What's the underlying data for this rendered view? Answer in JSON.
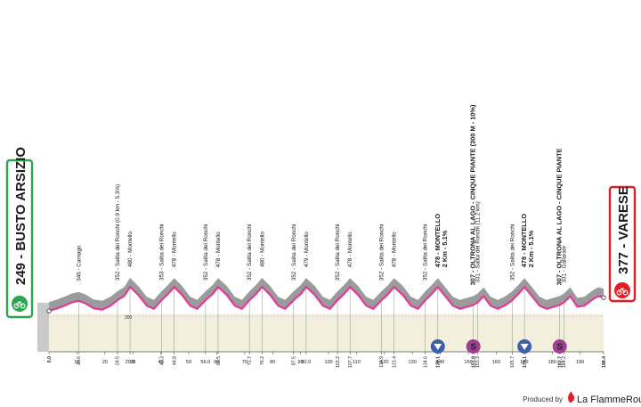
{
  "chart_data": {
    "type": "area",
    "x_unit": "km",
    "total_km": 198.4,
    "y_range": [
      0,
      500
    ],
    "gridline_label": "200",
    "start": {
      "label": "249 - BUSTO ARSIZIO",
      "alt": 249
    },
    "finish": {
      "label": "377 - VARESE",
      "alt": 377
    },
    "x_ticks": [
      {
        "km": 0,
        "label": "0.0",
        "bold": true
      },
      {
        "km": 10,
        "label": "10"
      },
      {
        "km": 10.6,
        "label": "10.6"
      },
      {
        "km": 20,
        "label": "20"
      },
      {
        "km": 24.5,
        "label": "24.5"
      },
      {
        "km": 29.0,
        "label": "29.0"
      },
      {
        "km": 30,
        "label": "30"
      },
      {
        "km": 40,
        "label": "40"
      },
      {
        "km": 40.3,
        "label": "40.3"
      },
      {
        "km": 44.8,
        "label": "44.8"
      },
      {
        "km": 50,
        "label": "50"
      },
      {
        "km": 56.0,
        "label": "56.0"
      },
      {
        "km": 60,
        "label": "60"
      },
      {
        "km": 60.5,
        "label": "60.5"
      },
      {
        "km": 70,
        "label": "70"
      },
      {
        "km": 71.7,
        "label": "71.7"
      },
      {
        "km": 76.2,
        "label": "76.2"
      },
      {
        "km": 80,
        "label": "80"
      },
      {
        "km": 87.5,
        "label": "87.5"
      },
      {
        "km": 90,
        "label": "90"
      },
      {
        "km": 92.0,
        "label": "92.0"
      },
      {
        "km": 100,
        "label": "100"
      },
      {
        "km": 103.2,
        "label": "103.2"
      },
      {
        "km": 107.7,
        "label": "107.7"
      },
      {
        "km": 110,
        "label": "110"
      },
      {
        "km": 118.9,
        "label": "118.9"
      },
      {
        "km": 120,
        "label": "120"
      },
      {
        "km": 123.4,
        "label": "123.4"
      },
      {
        "km": 130,
        "label": "130"
      },
      {
        "km": 134.6,
        "label": "134.6"
      },
      {
        "km": 139.1,
        "label": "139.1",
        "bold": true
      },
      {
        "km": 140,
        "label": "140"
      },
      {
        "km": 150,
        "label": "150"
      },
      {
        "km": 151.8,
        "label": "151.8",
        "bold": true
      },
      {
        "km": 153.3,
        "label": "153.3"
      },
      {
        "km": 160,
        "label": "160"
      },
      {
        "km": 165.7,
        "label": "165.7"
      },
      {
        "km": 170,
        "label": "170"
      },
      {
        "km": 170.1,
        "label": "170.1",
        "bold": true
      },
      {
        "km": 180,
        "label": "180"
      },
      {
        "km": 182.7,
        "label": "182.7",
        "bold": true
      },
      {
        "km": 184.2,
        "label": "184.2"
      },
      {
        "km": 190,
        "label": "190"
      },
      {
        "km": 198.4,
        "label": "198.4",
        "bold": true
      }
    ],
    "profile": [
      {
        "km": 0,
        "alt": 249
      },
      {
        "km": 3,
        "alt": 275
      },
      {
        "km": 6,
        "alt": 305
      },
      {
        "km": 8,
        "alt": 330
      },
      {
        "km": 10.6,
        "alt": 346
      },
      {
        "km": 13,
        "alt": 322
      },
      {
        "km": 16,
        "alt": 275
      },
      {
        "km": 19,
        "alt": 262
      },
      {
        "km": 22,
        "alt": 300
      },
      {
        "km": 24.5,
        "alt": 352
      },
      {
        "km": 27,
        "alt": 395
      },
      {
        "km": 29.0,
        "alt": 480
      },
      {
        "km": 32,
        "alt": 400
      },
      {
        "km": 35,
        "alt": 300
      },
      {
        "km": 37.5,
        "alt": 270
      },
      {
        "km": 40.3,
        "alt": 353
      },
      {
        "km": 42.5,
        "alt": 410
      },
      {
        "km": 44.8,
        "alt": 478
      },
      {
        "km": 47.5,
        "alt": 405
      },
      {
        "km": 50.5,
        "alt": 300
      },
      {
        "km": 53,
        "alt": 270
      },
      {
        "km": 56.0,
        "alt": 352
      },
      {
        "km": 58.5,
        "alt": 410
      },
      {
        "km": 60.5,
        "alt": 478
      },
      {
        "km": 63.5,
        "alt": 405
      },
      {
        "km": 66.5,
        "alt": 300
      },
      {
        "km": 69,
        "alt": 270
      },
      {
        "km": 71.7,
        "alt": 352
      },
      {
        "km": 74,
        "alt": 410
      },
      {
        "km": 76.2,
        "alt": 480
      },
      {
        "km": 79,
        "alt": 405
      },
      {
        "km": 82,
        "alt": 300
      },
      {
        "km": 84.5,
        "alt": 270
      },
      {
        "km": 87.5,
        "alt": 352
      },
      {
        "km": 90,
        "alt": 410
      },
      {
        "km": 92.0,
        "alt": 479
      },
      {
        "km": 95,
        "alt": 405
      },
      {
        "km": 98,
        "alt": 300
      },
      {
        "km": 100.5,
        "alt": 270
      },
      {
        "km": 103.2,
        "alt": 352
      },
      {
        "km": 105.5,
        "alt": 410
      },
      {
        "km": 107.7,
        "alt": 478
      },
      {
        "km": 110.5,
        "alt": 405
      },
      {
        "km": 113.5,
        "alt": 300
      },
      {
        "km": 116,
        "alt": 270
      },
      {
        "km": 118.9,
        "alt": 352
      },
      {
        "km": 121.3,
        "alt": 410
      },
      {
        "km": 123.4,
        "alt": 478
      },
      {
        "km": 126.5,
        "alt": 405
      },
      {
        "km": 129.5,
        "alt": 300
      },
      {
        "km": 132,
        "alt": 270
      },
      {
        "km": 134.6,
        "alt": 352
      },
      {
        "km": 137,
        "alt": 415
      },
      {
        "km": 139.1,
        "alt": 478
      },
      {
        "km": 141.5,
        "alt": 400
      },
      {
        "km": 144.5,
        "alt": 300
      },
      {
        "km": 147,
        "alt": 270
      },
      {
        "km": 151.8,
        "alt": 307
      },
      {
        "km": 153.3,
        "alt": 331
      },
      {
        "km": 155.5,
        "alt": 390
      },
      {
        "km": 158,
        "alt": 300
      },
      {
        "km": 160.5,
        "alt": 270
      },
      {
        "km": 163,
        "alt": 300
      },
      {
        "km": 165.7,
        "alt": 352
      },
      {
        "km": 168,
        "alt": 415
      },
      {
        "km": 170.1,
        "alt": 478
      },
      {
        "km": 172.5,
        "alt": 400
      },
      {
        "km": 175.5,
        "alt": 300
      },
      {
        "km": 178,
        "alt": 270
      },
      {
        "km": 182.7,
        "alt": 307
      },
      {
        "km": 184.2,
        "alt": 331
      },
      {
        "km": 186.5,
        "alt": 390
      },
      {
        "km": 189,
        "alt": 290
      },
      {
        "km": 191.5,
        "alt": 300
      },
      {
        "km": 194.5,
        "alt": 360
      },
      {
        "km": 196.5,
        "alt": 390
      },
      {
        "km": 198.4,
        "alt": 377
      }
    ],
    "points": [
      {
        "km": 10.6,
        "name": "346 - Carnago"
      },
      {
        "km": 24.5,
        "name": "352 - Salita dei Ronchi (0.9 km - 5.3%)"
      },
      {
        "km": 29.0,
        "name": "480 - Montello"
      },
      {
        "km": 40.3,
        "name": "353 - Salita dei Ronchi"
      },
      {
        "km": 44.8,
        "name": "478 - Montello"
      },
      {
        "km": 56.0,
        "name": "352 - Salita dei Ronchi"
      },
      {
        "km": 60.5,
        "name": "478 - Montello"
      },
      {
        "km": 71.7,
        "name": "352 - Salita dei Ronchi"
      },
      {
        "km": 76.2,
        "name": "480 - Montello"
      },
      {
        "km": 87.5,
        "name": "352 - Salita dei Ronchi"
      },
      {
        "km": 92.0,
        "name": "479 - Montello"
      },
      {
        "km": 103.2,
        "name": "352 - Salita dei Ronchi"
      },
      {
        "km": 107.7,
        "name": "478 - Montello"
      },
      {
        "km": 118.9,
        "name": "352 - Salita dei Ronchi"
      },
      {
        "km": 123.4,
        "name": "478 - Montello"
      },
      {
        "km": 134.6,
        "name": "352 - Salita dei Ronchi"
      },
      {
        "km": 139.1,
        "name": "478 - MONTELLO",
        "sub": "2 Km - 5.1%",
        "bold": true
      },
      {
        "km": 151.8,
        "name": "307 - OLTRONA AL LAGO - CINQUE PIANTE (300 M - 10%)",
        "bold": true
      },
      {
        "km": 153.3,
        "name": "331 - Salita dei Ronchi (11.2 km)"
      },
      {
        "km": 165.7,
        "name": "352 - Salita dei Ronchi"
      },
      {
        "km": 170.1,
        "name": "478 - MONTELLO",
        "sub": "2 Km - 5.1%",
        "bold": true
      },
      {
        "km": 182.7,
        "name": "307 - OLTRONA AL LAGO - CINQUE PIANTE",
        "bold": true
      },
      {
        "km": 184.2,
        "name": "331 - Gallarate"
      }
    ],
    "markers": [
      {
        "km": 139.1,
        "kind": "kom",
        "color": "#3f5fa8"
      },
      {
        "km": 151.8,
        "kind": "sprint",
        "label": "S",
        "color": "#a03e92"
      },
      {
        "km": 170.1,
        "kind": "kom",
        "color": "#3f5fa8"
      },
      {
        "km": 182.7,
        "kind": "sprint",
        "label": "S",
        "color": "#a03e92"
      }
    ]
  },
  "colors": {
    "profile_top": "#e23a97",
    "profile_fill": "#9b9b9b",
    "ground": "#f2f0dc",
    "start_green": "#2da44e",
    "finish_red": "#e11d25",
    "ink": "#1a1a1a"
  },
  "footer": {
    "brand_prefix": "Produced by",
    "brand": "La FlammeRouge"
  }
}
